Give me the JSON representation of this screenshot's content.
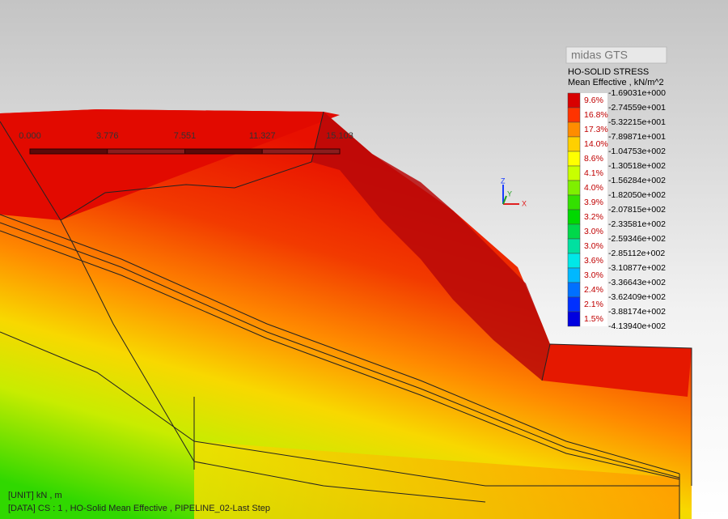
{
  "logo": "midas GTS",
  "legend": {
    "title": "HO-SOLID STRESS",
    "subtitle": "Mean Effective , kN/m^2",
    "values": [
      "-1.69031e+000",
      "-2.74559e+001",
      "-5.32215e+001",
      "-7.89871e+001",
      "-1.04753e+002",
      "-1.30518e+002",
      "-1.56284e+002",
      "-1.82050e+002",
      "-2.07815e+002",
      "-2.33581e+002",
      "-2.59346e+002",
      "-2.85112e+002",
      "-3.10877e+002",
      "-3.36643e+002",
      "-3.62409e+002",
      "-3.88174e+002",
      "-4.13940e+002"
    ],
    "bins": [
      {
        "percent": "9.6%",
        "color": "#d80000"
      },
      {
        "percent": "16.8%",
        "color": "#ff3300"
      },
      {
        "percent": "17.3%",
        "color": "#ff8c00"
      },
      {
        "percent": "14.0%",
        "color": "#ffd000"
      },
      {
        "percent": "8.6%",
        "color": "#ffff00"
      },
      {
        "percent": "4.1%",
        "color": "#c8ff00"
      },
      {
        "percent": "4.0%",
        "color": "#7ff000"
      },
      {
        "percent": "3.9%",
        "color": "#33e000"
      },
      {
        "percent": "3.2%",
        "color": "#00d800"
      },
      {
        "percent": "3.0%",
        "color": "#00d84a"
      },
      {
        "percent": "3.0%",
        "color": "#00e0a0"
      },
      {
        "percent": "3.6%",
        "color": "#00e8e8"
      },
      {
        "percent": "3.0%",
        "color": "#00b8ff"
      },
      {
        "percent": "2.4%",
        "color": "#0070ff"
      },
      {
        "percent": "2.1%",
        "color": "#0030ff"
      },
      {
        "percent": "1.5%",
        "color": "#0000e0"
      }
    ]
  },
  "scale_bar": [
    "0.000",
    "3.776",
    "7.551",
    "11.327",
    "15.103"
  ],
  "axes": {
    "z": "Z",
    "y": "Y",
    "x": "X"
  },
  "info": {
    "unit": "[UNIT]  kN  ,  m",
    "data": "[DATA]  CS : 1  ,   HO-Solid Mean Effective  ,   PIPELINE_02-Last Step"
  }
}
